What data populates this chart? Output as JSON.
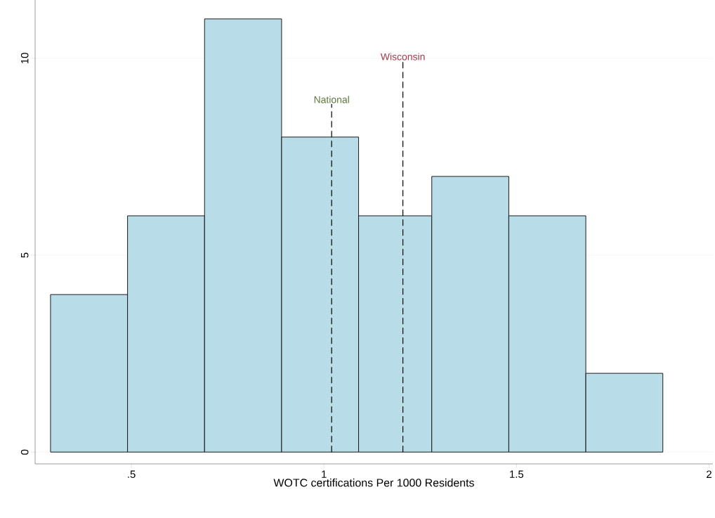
{
  "chart_data": {
    "type": "histogram",
    "xlabel": "WOTC certifications Per 1000 Residents",
    "bins": [
      0.29,
      0.49,
      0.69,
      0.89,
      1.09,
      1.28,
      1.48,
      1.68,
      1.88
    ],
    "values": [
      4,
      6,
      11,
      8,
      6,
      7,
      6,
      2
    ],
    "color": "#b8dce8",
    "xlim": [
      0.25,
      2.01
    ],
    "ylim": [
      -0.3,
      11.48
    ],
    "xticks": [
      {
        "value": 0.5,
        "label": ".5"
      },
      1,
      {
        "value": 1.5,
        "label": "1.5"
      },
      2
    ],
    "yticks": [
      0,
      5,
      10
    ],
    "grid": "y",
    "ref_lines": [
      {
        "axis": "x",
        "value": 1.02,
        "label": "National",
        "line_style": "dashed"
      },
      {
        "axis": "x",
        "value": 1.205,
        "label": "Wisconsin",
        "line_style": "dashed"
      }
    ]
  }
}
